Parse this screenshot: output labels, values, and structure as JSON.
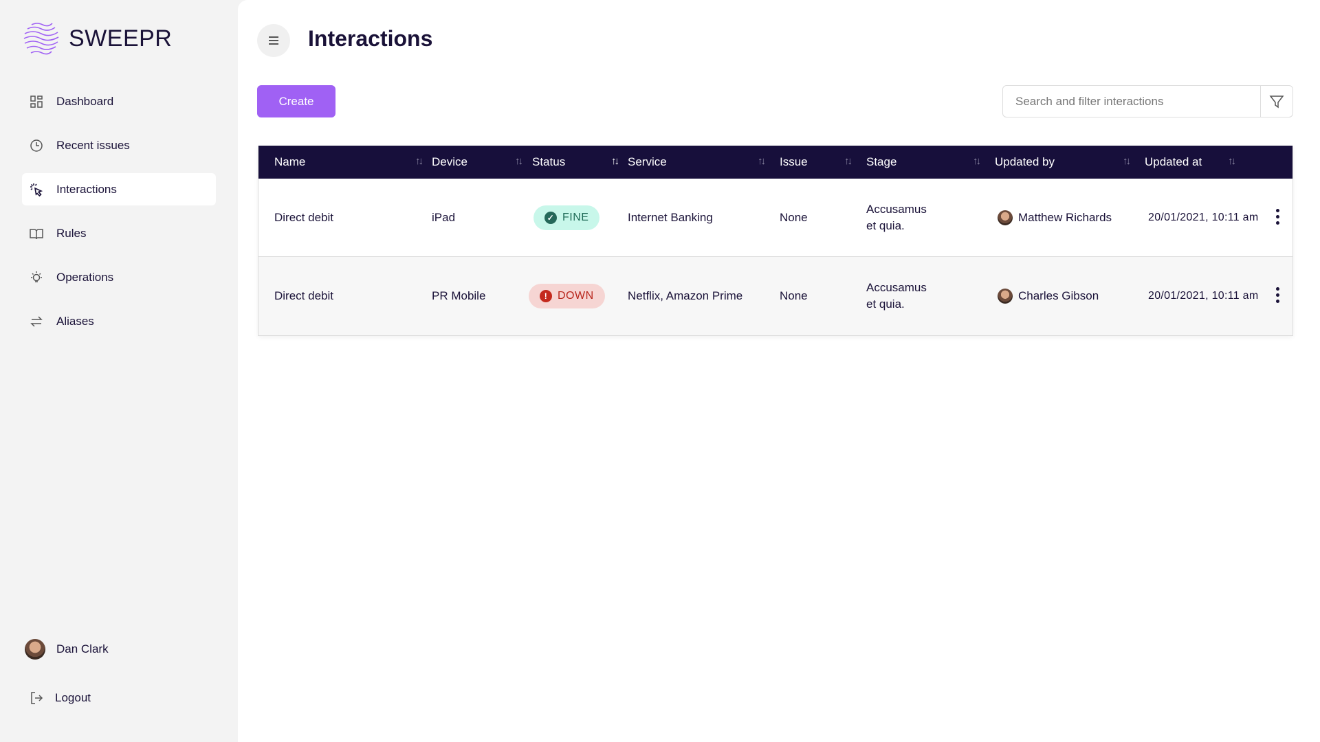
{
  "brand": {
    "name": "SWEEPR",
    "accent": "#a061f4",
    "header_bg": "#170f3b"
  },
  "sidebar": {
    "items": [
      {
        "label": "Dashboard",
        "icon": "grid-icon"
      },
      {
        "label": "Recent issues",
        "icon": "clock-icon"
      },
      {
        "label": "Interactions",
        "icon": "cursor-click-icon",
        "active": true
      },
      {
        "label": "Rules",
        "icon": "book-icon"
      },
      {
        "label": "Operations",
        "icon": "lightbulb-icon"
      },
      {
        "label": "Aliases",
        "icon": "swap-arrows-icon"
      }
    ],
    "user": "Dan Clark",
    "logout": "Logout"
  },
  "header": {
    "title": "Interactions"
  },
  "toolbar": {
    "create_label": "Create",
    "search_placeholder": "Search and filter interactions"
  },
  "table": {
    "columns": [
      "Name",
      "Device",
      "Status",
      "Service",
      "Issue",
      "Stage",
      "Updated by",
      "Updated at"
    ],
    "rows": [
      {
        "name": "Direct debit",
        "device": "iPad",
        "status": "FINE",
        "service": "Internet Banking",
        "issue": "None",
        "stage_1": "Accusamus",
        "stage_2": "et quia.",
        "updated_by": "Matthew Richards",
        "updated_at": "20/01/2021, 10:11 am"
      },
      {
        "name": "Direct debit",
        "device": "PR Mobile",
        "status": "DOWN",
        "service": "Netflix, Amazon Prime",
        "issue": "None",
        "stage_1": "Accusamus",
        "stage_2": "et quia.",
        "updated_by": "Charles Gibson",
        "updated_at": "20/01/2021, 10:11 am"
      }
    ]
  }
}
